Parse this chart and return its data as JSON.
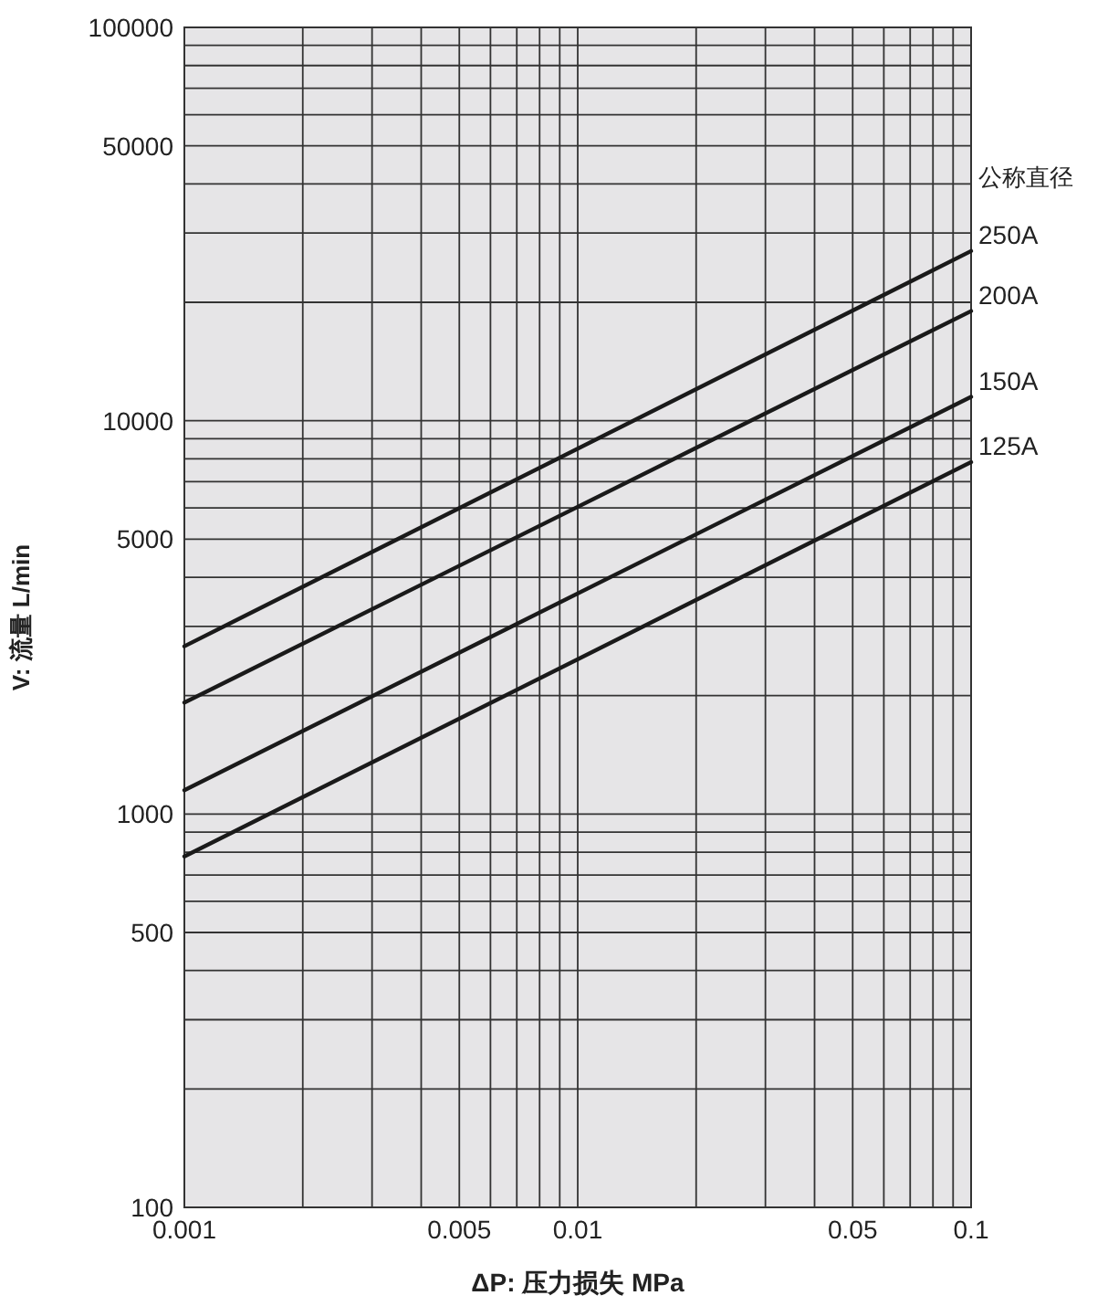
{
  "chart_data": {
    "type": "line",
    "xlabel": "ΔP: 压力损失 MPa",
    "ylabel": "V: 流量 L/min",
    "legend_title": "公称直径",
    "log": "xy",
    "grid": true,
    "xlim": [
      0.001,
      0.1
    ],
    "ylim": [
      100,
      100000
    ],
    "xticks": [
      0.001,
      {
        "value": 0.002,
        "label": null
      },
      {
        "value": 0.003,
        "label": null
      },
      {
        "value": 0.004,
        "label": null
      },
      0.005,
      {
        "value": 0.006,
        "label": null
      },
      {
        "value": 0.007,
        "label": null
      },
      {
        "value": 0.008,
        "label": null
      },
      {
        "value": 0.009,
        "label": null
      },
      0.01,
      {
        "value": 0.02,
        "label": null
      },
      {
        "value": 0.03,
        "label": null
      },
      {
        "value": 0.04,
        "label": null
      },
      0.05,
      {
        "value": 0.06,
        "label": null
      },
      {
        "value": 0.07,
        "label": null
      },
      {
        "value": 0.08,
        "label": null
      },
      {
        "value": 0.09,
        "label": null
      },
      0.1
    ],
    "yticks": [
      100,
      {
        "value": 200,
        "label": null
      },
      {
        "value": 300,
        "label": null
      },
      {
        "value": 400,
        "label": null
      },
      500,
      {
        "value": 600,
        "label": null
      },
      {
        "value": 700,
        "label": null
      },
      {
        "value": 800,
        "label": null
      },
      {
        "value": 900,
        "label": null
      },
      1000,
      {
        "value": 2000,
        "label": null
      },
      {
        "value": 3000,
        "label": null
      },
      {
        "value": 4000,
        "label": null
      },
      5000,
      {
        "value": 6000,
        "label": null
      },
      {
        "value": 7000,
        "label": null
      },
      {
        "value": 8000,
        "label": null
      },
      {
        "value": 9000,
        "label": null
      },
      10000,
      {
        "value": 20000,
        "label": null
      },
      {
        "value": 30000,
        "label": null
      },
      {
        "value": 40000,
        "label": null
      },
      50000,
      {
        "value": 60000,
        "label": null
      },
      {
        "value": 70000,
        "label": null
      },
      {
        "value": 80000,
        "label": null
      },
      {
        "value": 90000,
        "label": null
      },
      100000
    ],
    "x": [
      0.001,
      0.1
    ],
    "series": [
      {
        "name": "250A",
        "color": "#1a1a1a",
        "values": [
          2670,
          27000
        ]
      },
      {
        "name": "200A",
        "color": "#1a1a1a",
        "values": [
          1920,
          19000
        ]
      },
      {
        "name": "150A",
        "color": "#1a1a1a",
        "values": [
          1150,
          11500
        ]
      },
      {
        "name": "125A",
        "color": "#1a1a1a",
        "values": [
          780,
          7850
        ]
      }
    ]
  }
}
